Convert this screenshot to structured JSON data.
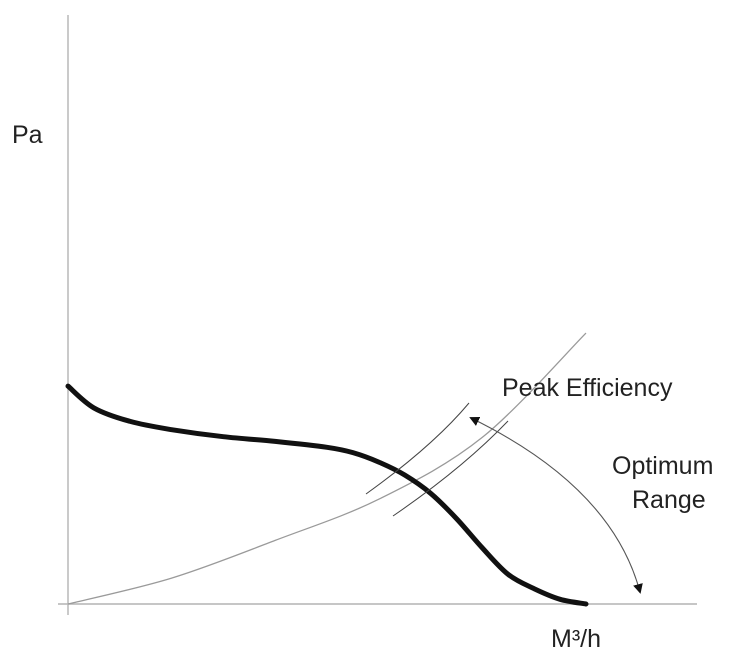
{
  "chart_data": {
    "type": "line",
    "title": "",
    "xlabel": "M³/h",
    "ylabel": "Pa",
    "grid": false,
    "legend": "none",
    "xlim": [
      0,
      100
    ],
    "ylim": [
      0,
      100
    ],
    "series": [
      {
        "x": [
          0,
          5,
          12,
          20,
          30,
          40,
          50,
          55,
          60,
          65,
          70,
          75,
          80,
          85,
          90,
          95,
          100
        ],
        "y": [
          37.0,
          33.3,
          31.0,
          29.6,
          28.4,
          27.6,
          26.6,
          25.7,
          24.1,
          21.9,
          18.8,
          14.5,
          9.5,
          5.0,
          2.6,
          0.8,
          0
        ],
        "color": "#111111"
      },
      {
        "x": [
          0,
          20,
          40,
          60,
          80,
          100
        ],
        "y": [
          0,
          4.4,
          10.8,
          17.8,
          28.3,
          46.0
        ],
        "color": "#9a9a9a"
      }
    ],
    "annotations": [
      {
        "text": "Peak Efficiency"
      },
      {
        "text": "Optimum"
      },
      {
        "text": "Range"
      }
    ]
  }
}
